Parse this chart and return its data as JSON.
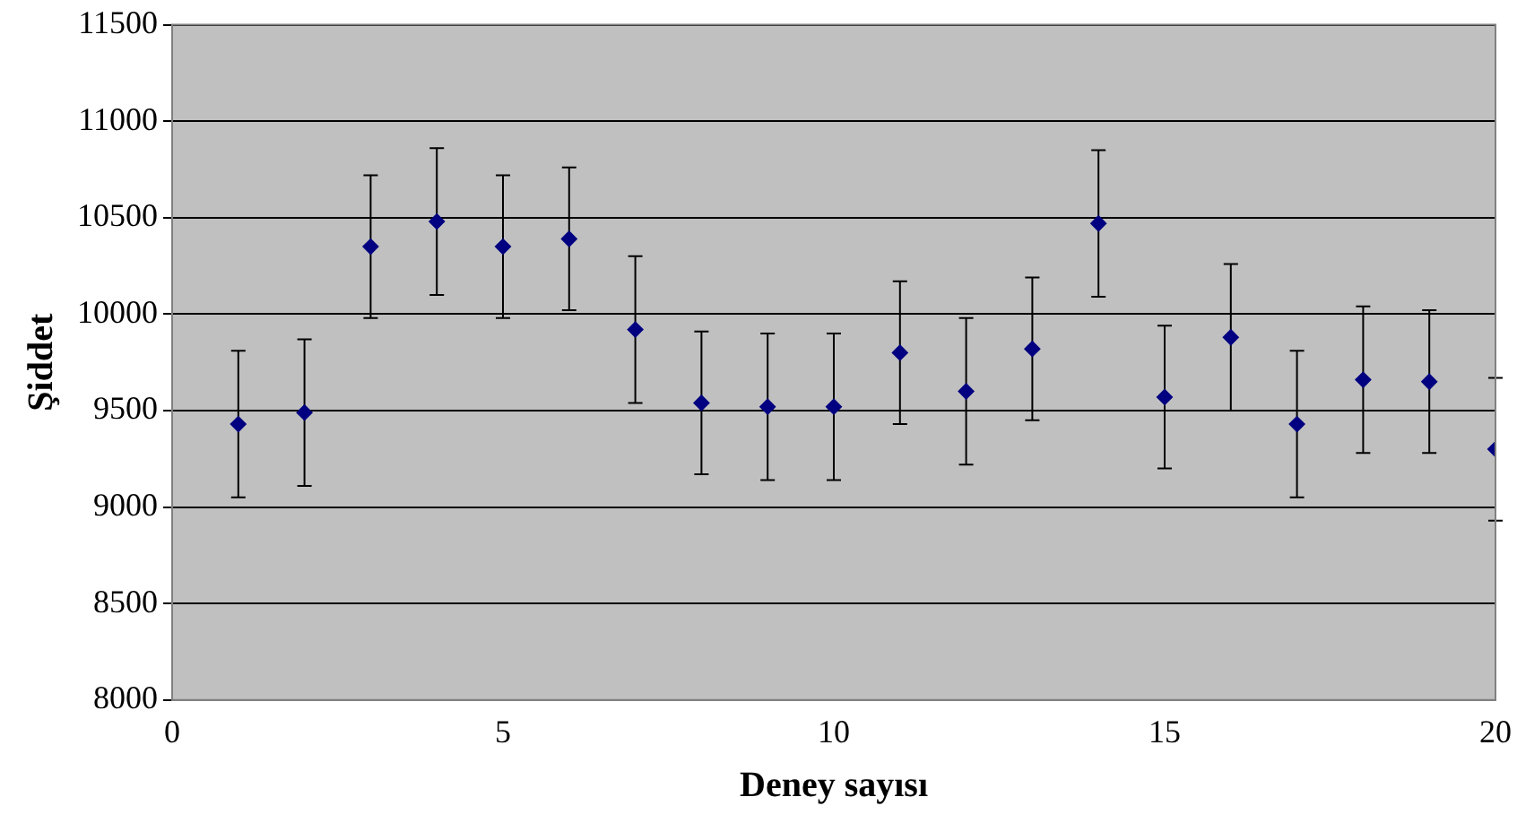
{
  "chart_data": {
    "type": "scatter",
    "xlabel": "Deney sayısı",
    "ylabel": "Şiddet",
    "x": [
      1,
      2,
      3,
      4,
      5,
      6,
      7,
      8,
      9,
      10,
      11,
      12,
      13,
      14,
      15,
      16,
      17,
      18,
      19,
      20
    ],
    "series": [
      {
        "color": "#000080",
        "values": [
          9430,
          9490,
          10350,
          10480,
          10350,
          10390,
          9920,
          9540,
          9520,
          9520,
          9800,
          9600,
          9820,
          10470,
          9570,
          9880,
          9430,
          9660,
          9650,
          9300
        ],
        "errors": [
          380,
          380,
          370,
          380,
          370,
          370,
          380,
          370,
          380,
          380,
          370,
          380,
          370,
          380,
          370,
          380,
          380,
          380,
          370,
          370
        ]
      }
    ],
    "xlim": [
      0,
      20
    ],
    "xticks": [
      0,
      5,
      10,
      15,
      20
    ],
    "ylim": [
      8000,
      11500
    ],
    "yticks": [
      8000,
      8500,
      9000,
      9500,
      10000,
      10500,
      11000,
      11500
    ],
    "grid": "y",
    "marker": "diamond",
    "legend": false
  }
}
